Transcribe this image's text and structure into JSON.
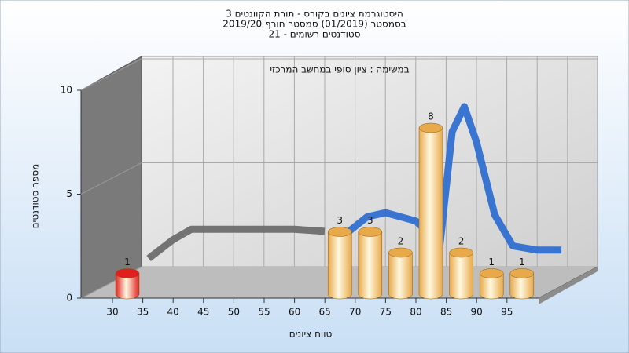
{
  "chart_data": {
    "type": "bar3d",
    "title_lines": [
      "היסטוגרמת ציונים בקורס - תורת הקוונטים 3",
      "בסמסטר (01/2019) סמסטר חורף 2019/20",
      "סטודנטים רשומים - 21"
    ],
    "subtitle": "במשימה : ציון סופי במחשב המרכזי",
    "x_label": "טווח ציונים",
    "y_label": "מספר סטודנטים",
    "categories": [
      "30",
      "35",
      "40",
      "45",
      "50",
      "55",
      "60",
      "65",
      "70",
      "75",
      "80",
      "85",
      "90",
      "95"
    ],
    "values": [
      1,
      0,
      0,
      0,
      0,
      0,
      0,
      3,
      3,
      2,
      8,
      2,
      1,
      1
    ],
    "colors": [
      "#e02020",
      "#e8a94a",
      "#e8a94a",
      "#e8a94a",
      "#e8a94a",
      "#e8a94a",
      "#e8a94a",
      "#e8a94a",
      "#e8a94a",
      "#e8a94a",
      "#e8a94a",
      "#e8a94a",
      "#e8a94a",
      "#e8a94a"
    ],
    "ylim": [
      0,
      10
    ],
    "yticks": [
      0,
      5,
      10
    ],
    "grid": true,
    "curves": [
      {
        "color": "#6d6d6d",
        "x": [
          26,
          30,
          33,
          40,
          50,
          55
        ],
        "values": [
          0.4,
          1.3,
          1.8,
          1.8,
          1.8,
          1.7
        ]
      },
      {
        "color": "#2f6fd0",
        "x": [
          59,
          62,
          65,
          70,
          74,
          76,
          78,
          80,
          83,
          86,
          90,
          94
        ],
        "values": [
          1.7,
          2.4,
          2.6,
          2.2,
          1.1,
          6.5,
          7.7,
          6.0,
          2.5,
          1.0,
          0.8,
          0.8
        ]
      }
    ]
  }
}
